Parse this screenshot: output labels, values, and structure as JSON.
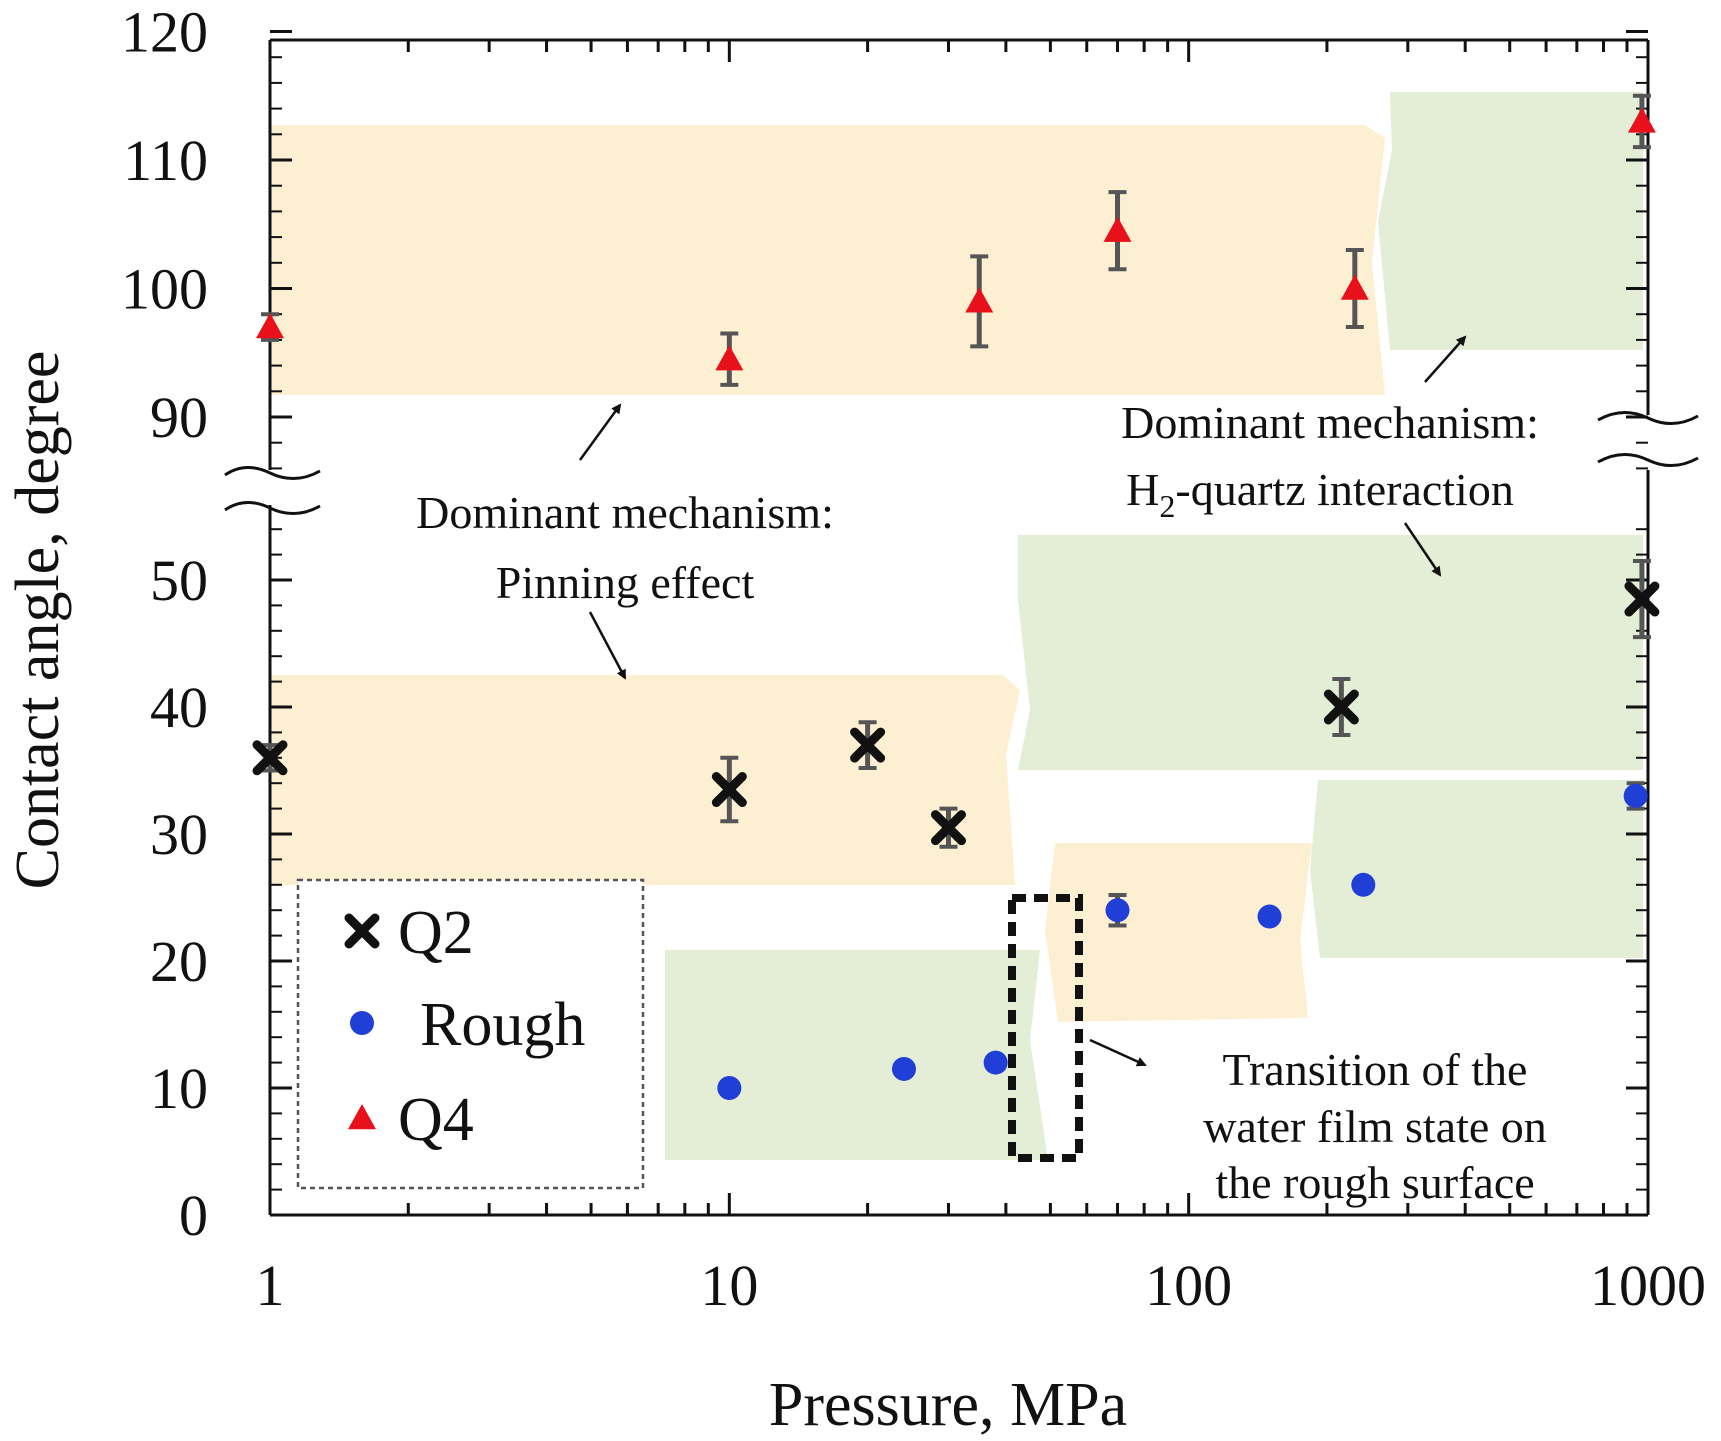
{
  "chart_data": {
    "type": "scatter",
    "xlabel": "Pressure, MPa",
    "ylabel": "Contact angle, degree",
    "x_scale": "log",
    "xlim": [
      1,
      1000
    ],
    "x_ticks": [
      "1",
      "10",
      "100",
      "1000"
    ],
    "y_axis_break": {
      "lower": [
        0,
        55
      ],
      "upper": [
        85,
        120
      ]
    },
    "y_ticks_lower": [
      "0",
      "10",
      "20",
      "30",
      "40",
      "50"
    ],
    "y_ticks_upper": [
      "90",
      "100",
      "110",
      "120"
    ],
    "series": [
      {
        "name": "Q2",
        "marker": "x",
        "color": "#111111",
        "points": [
          {
            "x": 1,
            "y": 36,
            "err": 1.0
          },
          {
            "x": 10,
            "y": 33.5,
            "err": 2.5
          },
          {
            "x": 20,
            "y": 37,
            "err": 1.8
          },
          {
            "x": 30,
            "y": 30.5,
            "err": 1.5
          },
          {
            "x": 215,
            "y": 40,
            "err": 2.2
          },
          {
            "x": 970,
            "y": 48.5,
            "err": 3.0
          }
        ]
      },
      {
        "name": "Rough",
        "marker": "circle",
        "color": "#1f3fd6",
        "points": [
          {
            "x": 10,
            "y": 10,
            "err": 0
          },
          {
            "x": 24,
            "y": 11.5,
            "err": 0
          },
          {
            "x": 38,
            "y": 12,
            "err": 0
          },
          {
            "x": 70,
            "y": 24,
            "err": 1.2
          },
          {
            "x": 150,
            "y": 23.5,
            "err": 0
          },
          {
            "x": 240,
            "y": 26,
            "err": 0
          },
          {
            "x": 940,
            "y": 33,
            "err": 1.0
          }
        ]
      },
      {
        "name": "Q4",
        "marker": "triangle",
        "color": "#e8101a",
        "points": [
          {
            "x": 1,
            "y": 97,
            "err": 1.0
          },
          {
            "x": 10,
            "y": 94.5,
            "err": 2.0
          },
          {
            "x": 35,
            "y": 99,
            "err": 3.5
          },
          {
            "x": 70,
            "y": 104.5,
            "err": 3.0
          },
          {
            "x": 230,
            "y": 100,
            "err": 3.0
          },
          {
            "x": 970,
            "y": 113,
            "err": 2.0
          }
        ]
      }
    ],
    "annotations": [
      {
        "id": "pinning",
        "lines": [
          "Dominant mechanism:",
          "Pinning effect"
        ]
      },
      {
        "id": "h2quartz",
        "lines": [
          "Dominant mechanism:",
          "H",
          "2",
          "-quartz interaction"
        ]
      },
      {
        "id": "transition",
        "lines": [
          "Transition of the",
          "water film state on",
          "the rough surface"
        ]
      }
    ],
    "legend_position": "bottom-left",
    "colors": {
      "yellow_band": "#fdf0d2",
      "green_band": "#e4edd6"
    }
  }
}
